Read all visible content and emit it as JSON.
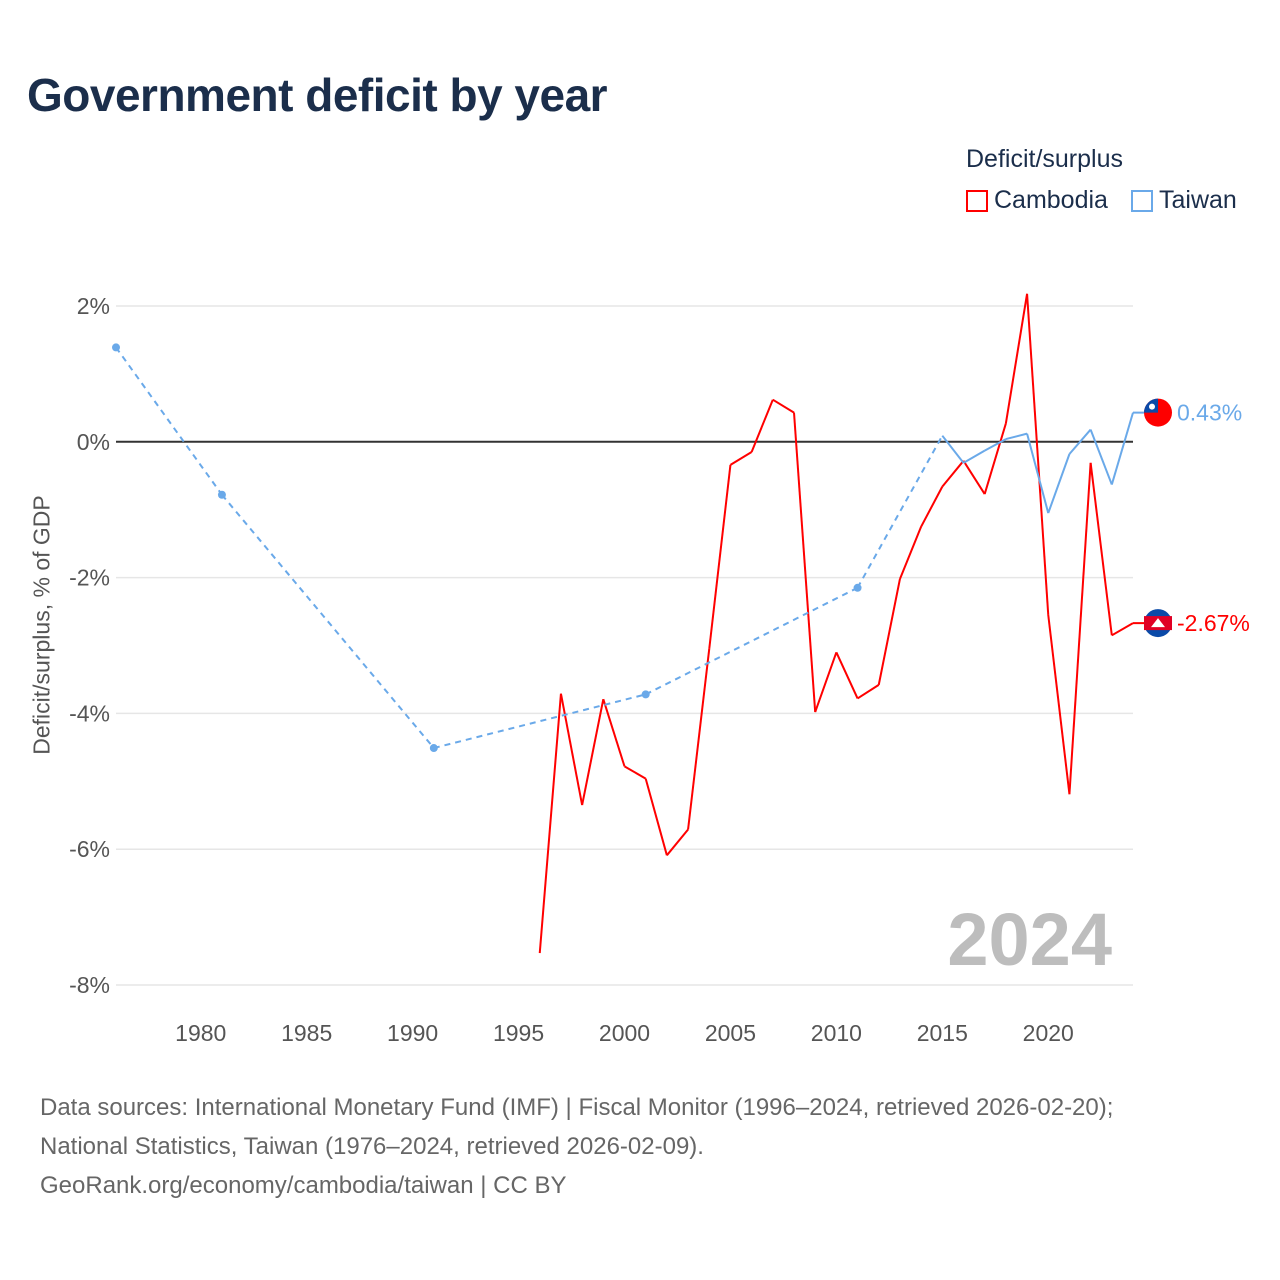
{
  "title": "Government deficit by year",
  "legend": {
    "title": "Deficit/surplus",
    "items": [
      {
        "name": "Cambodia",
        "color": "#ff0000"
      },
      {
        "name": "Taiwan",
        "color": "#6aa9e9"
      }
    ]
  },
  "year_watermark": "2024",
  "end_labels": {
    "taiwan": "0.43%",
    "cambodia": "-2.67%"
  },
  "sources": [
    "Data sources: International Monetary Fund (IMF) | Fiscal Monitor (1996–2024, retrieved 2026-02-20);",
    "National Statistics, Taiwan (1976–2024, retrieved 2026-02-09).",
    "GeoRank.org/economy/cambodia/taiwan | CC BY"
  ],
  "chart_data": {
    "type": "line",
    "title": "Government deficit by year",
    "xlabel": "",
    "ylabel": "Deficit/surplus, % of GDP",
    "xlim": [
      1976,
      2024
    ],
    "ylim": [
      -8,
      2
    ],
    "xticks": [
      1980,
      1985,
      1990,
      1995,
      2000,
      2005,
      2010,
      2015,
      2020
    ],
    "yticks": [
      {
        "v": 2,
        "label": "2%"
      },
      {
        "v": 0,
        "label": "0%"
      },
      {
        "v": -2,
        "label": "-2%"
      },
      {
        "v": -4,
        "label": "-4%"
      },
      {
        "v": -6,
        "label": "-6%"
      },
      {
        "v": -8,
        "label": "-8%"
      }
    ],
    "legend_placement": "top-right",
    "grid": true,
    "series": [
      {
        "name": "Cambodia",
        "color": "#ff0000",
        "x": [
          1996,
          1997,
          1998,
          1999,
          2000,
          2001,
          2002,
          2003,
          2004,
          2005,
          2006,
          2007,
          2008,
          2009,
          2010,
          2011,
          2012,
          2013,
          2014,
          2015,
          2016,
          2017,
          2018,
          2019,
          2020,
          2021,
          2022,
          2023,
          2024
        ],
        "y": [
          -7.53,
          -3.71,
          -5.35,
          -3.79,
          -4.78,
          -4.96,
          -6.09,
          -5.71,
          -3.05,
          -0.34,
          -0.15,
          0.62,
          0.43,
          -3.98,
          -3.1,
          -3.78,
          -3.58,
          -2.02,
          -1.25,
          -0.66,
          -0.28,
          -0.77,
          0.27,
          2.18,
          -2.55,
          -5.19,
          -0.31,
          -2.85,
          -2.67
        ]
      },
      {
        "name": "Taiwan",
        "color": "#6aa9e9",
        "x": [
          1976,
          1981,
          1991,
          2001,
          2011,
          2015,
          2016,
          2017,
          2018,
          2019,
          2020,
          2021,
          2022,
          2023,
          2024
        ],
        "y": [
          1.39,
          -0.78,
          -4.51,
          -3.72,
          -2.15,
          0.09,
          -0.31,
          -0.13,
          0.04,
          0.12,
          -1.05,
          -0.18,
          0.18,
          -0.63,
          0.43
        ]
      }
    ]
  }
}
